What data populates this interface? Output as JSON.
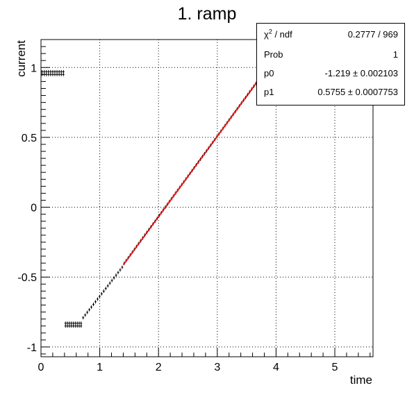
{
  "chart_data": {
    "type": "scatter",
    "title": "1. ramp",
    "xlabel": "time",
    "ylabel": "current",
    "xlim": [
      0,
      5.65
    ],
    "ylim": [
      -1.07,
      1.2
    ],
    "grid": true,
    "xticks": [
      0,
      1,
      2,
      3,
      4,
      5
    ],
    "yticks": [
      -1,
      -0.5,
      0,
      0.5,
      1
    ],
    "xtick_labels": [
      "0",
      "1",
      "2",
      "3",
      "4",
      "5"
    ],
    "ytick_labels": [
      "-1",
      "-0.5",
      "0",
      "0.5",
      "1"
    ],
    "series": [
      {
        "kind": "data",
        "segments": [
          {
            "x_start": 0.0,
            "x_end": 0.4,
            "y": 0.97
          },
          {
            "x_start": 0.0,
            "x_end": 0.4,
            "y": 0.95
          },
          {
            "x_start": 0.4,
            "x_end": 0.7,
            "y": -0.83
          },
          {
            "x_start": 0.4,
            "x_end": 0.7,
            "y": -0.85
          },
          {
            "x_start": 0.7,
            "x_end": 1.4,
            "y_start": -0.8,
            "y_end": -0.42
          },
          {
            "x_start": 1.4,
            "x_end": 4.2,
            "y_start": -0.411,
            "y_end": 1.198
          }
        ],
        "y_error": 0.012,
        "color": "#000000"
      },
      {
        "kind": "fit",
        "function": "p0 + p1*x",
        "p0": -1.219,
        "p1": 0.5755,
        "x_range": [
          1.4,
          4.2
        ],
        "color": "#ff0000"
      }
    ],
    "stats_box": {
      "rows": [
        {
          "key": "χ",
          "sup": "2",
          "key_rest": " / ndf",
          "value": "0.2777 / 969"
        },
        {
          "key": "Prob",
          "value": "1"
        },
        {
          "key": "p0",
          "value": "-1.219 ± 0.002103"
        },
        {
          "key": "p1",
          "value": "0.5755 ± 0.0007753"
        }
      ]
    }
  }
}
